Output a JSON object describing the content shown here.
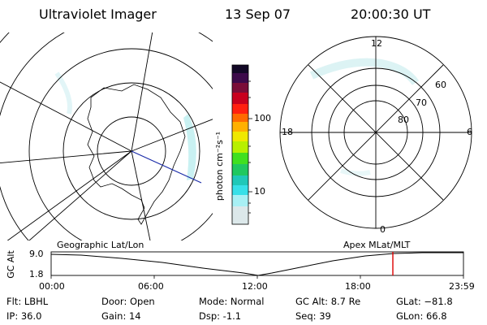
{
  "header": {
    "title": "Ultraviolet Imager",
    "date": "13 Sep 07",
    "time": "20:00:30 UT"
  },
  "left_map": {
    "caption": "Geographic Lat/Lon"
  },
  "right_map": {
    "caption": "Apex MLat/MLT",
    "mlt_labels": {
      "top": "12",
      "left": "18",
      "right": "6",
      "bottom": "0"
    },
    "lat_labels": [
      "60",
      "70",
      "80"
    ]
  },
  "colorbar": {
    "unit_label": "photon cm⁻²s⁻¹",
    "ticks": [
      "100",
      "10"
    ]
  },
  "altitude_plot": {
    "axis_label": "GC Alt",
    "y_ticks": [
      "9.0",
      "1.8"
    ],
    "x_ticks": [
      "00:00",
      "06:00",
      "12:00",
      "18:00",
      "23:59"
    ],
    "current_time_color": "#dd0000"
  },
  "info": {
    "flt": "Flt: LBHL",
    "ip": "IP: 36.0",
    "door": "Door: Open",
    "gain": "Gain: 14",
    "mode": "Mode: Normal",
    "dsp": "Dsp:    -1.1",
    "gcalt": "GC Alt: 8.7 Re",
    "seq": "Seq: 39",
    "glat": "GLat: −81.8",
    "glon": "GLon:  66.8"
  }
}
